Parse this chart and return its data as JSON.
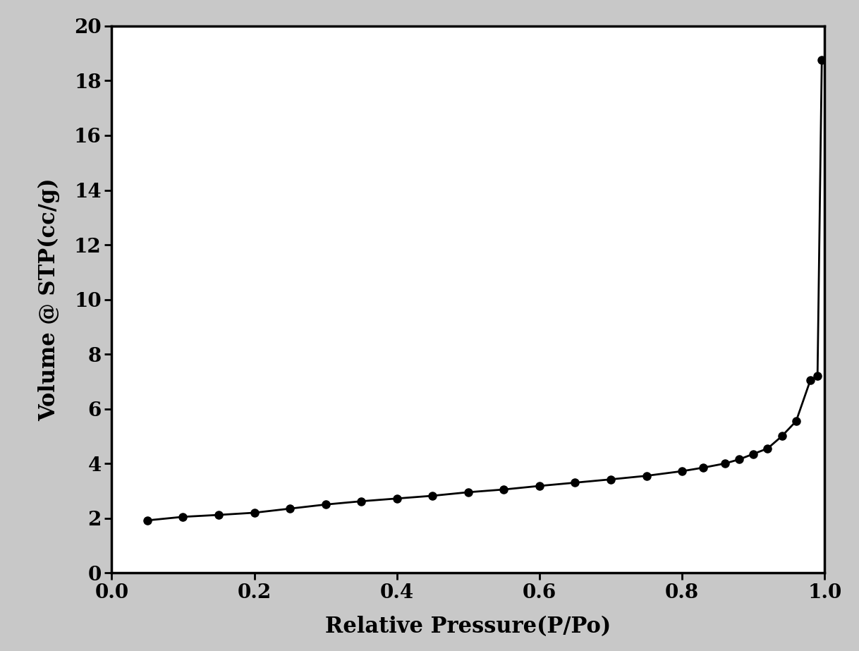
{
  "x": [
    0.05,
    0.1,
    0.15,
    0.2,
    0.25,
    0.3,
    0.35,
    0.4,
    0.45,
    0.5,
    0.55,
    0.6,
    0.65,
    0.7,
    0.75,
    0.8,
    0.83,
    0.86,
    0.88,
    0.9,
    0.92,
    0.94,
    0.96,
    0.98,
    0.99,
    0.996
  ],
  "y": [
    1.92,
    2.05,
    2.12,
    2.2,
    2.35,
    2.5,
    2.62,
    2.72,
    2.82,
    2.95,
    3.05,
    3.18,
    3.3,
    3.42,
    3.55,
    3.72,
    3.85,
    4.0,
    4.15,
    4.35,
    4.55,
    5.0,
    5.55,
    7.05,
    7.2,
    18.75
  ],
  "xlabel": "Relative Pressure(P/Po)",
  "ylabel": "Volume @ STP(cc/g)",
  "xlim": [
    0.0,
    1.0
  ],
  "ylim": [
    0,
    20
  ],
  "xticks": [
    0.0,
    0.2,
    0.4,
    0.6,
    0.8,
    1.0
  ],
  "yticks": [
    0,
    2,
    4,
    6,
    8,
    10,
    12,
    14,
    16,
    18,
    20
  ],
  "line_color": "#000000",
  "marker_color": "#000000",
  "marker_size": 8,
  "line_width": 2.0,
  "background_color": "#ffffff",
  "outer_background": "#c8c8c8",
  "xlabel_fontsize": 22,
  "ylabel_fontsize": 22,
  "tick_fontsize": 20
}
